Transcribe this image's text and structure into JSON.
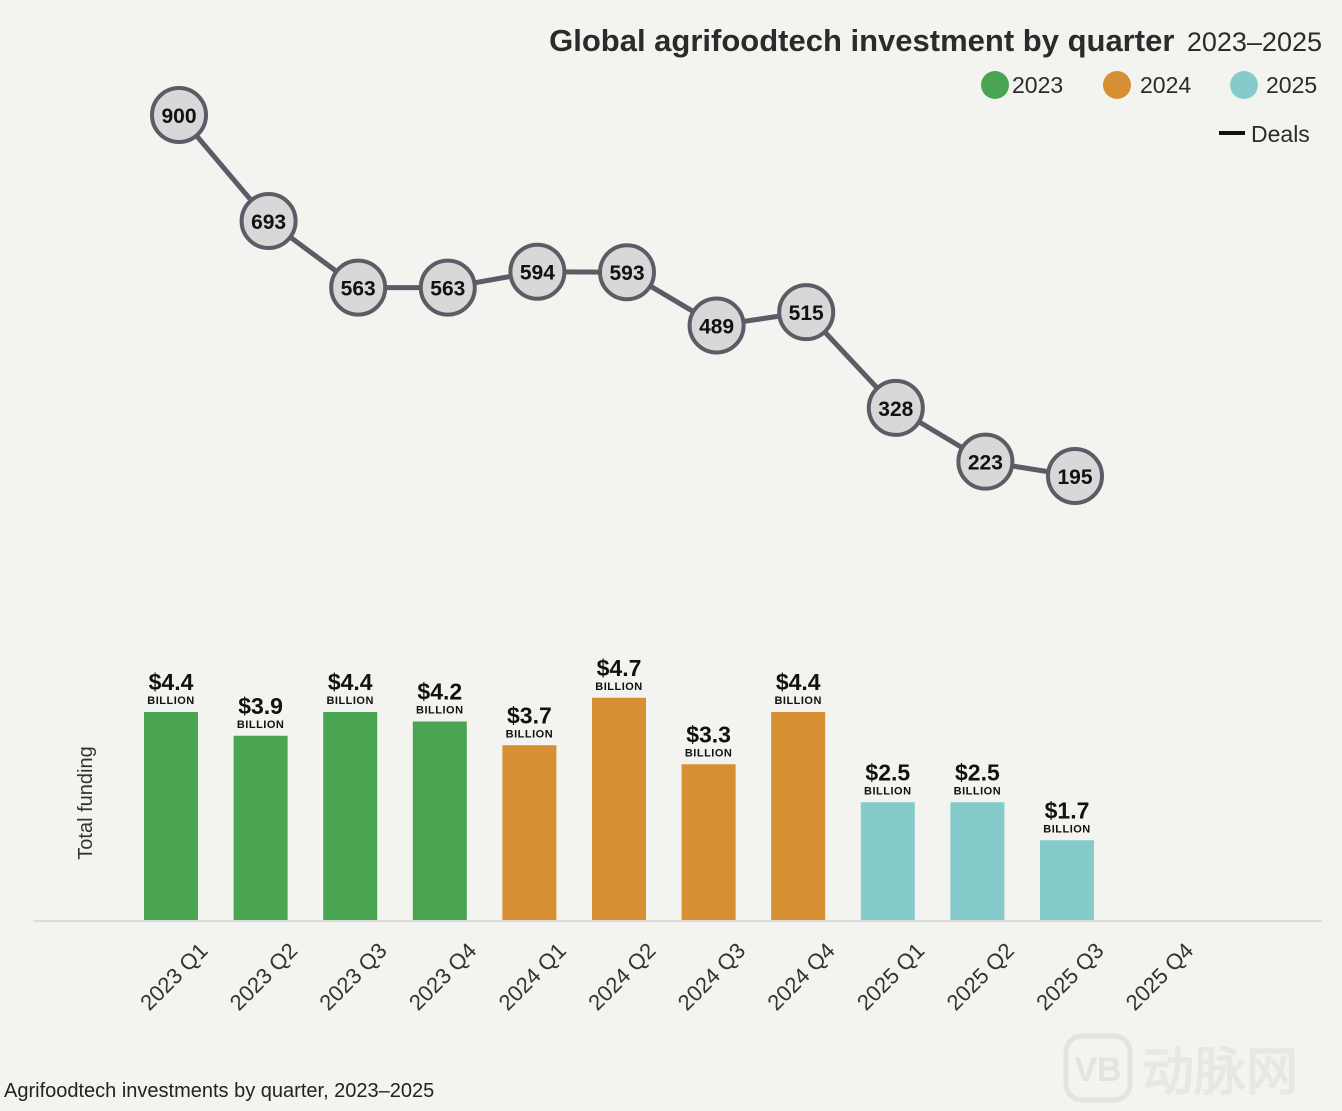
{
  "title": {
    "main": "Global agrifoodtech investment by quarter",
    "range": "2023–2025"
  },
  "legend": {
    "items": [
      {
        "label": "2023",
        "color": "#4aa552"
      },
      {
        "label": "2024",
        "color": "#d78f33"
      },
      {
        "label": "2025",
        "color": "#86cbcb"
      }
    ],
    "deals_label": "Deals"
  },
  "caption": "Agrifoodtech investments by quarter, 2023–2025",
  "watermark": {
    "text": "动脉网",
    "logo_text": "VB"
  },
  "chart_data": {
    "type": "bar",
    "title": "Global agrifoodtech investment by quarter 2023–2025",
    "xlabel": "",
    "ylabel": "Total funding",
    "categories": [
      "2023 Q1",
      "2023 Q2",
      "2023 Q3",
      "2023 Q4",
      "2024 Q1",
      "2024 Q2",
      "2024 Q3",
      "2024 Q4",
      "2025 Q1",
      "2025 Q2",
      "2025 Q3",
      "2025 Q4"
    ],
    "category_years": [
      "2023",
      "2023",
      "2023",
      "2023",
      "2024",
      "2024",
      "2024",
      "2024",
      "2025",
      "2025",
      "2025",
      "2025"
    ],
    "funding_unit": "BILLION",
    "series": [
      {
        "name": "Total funding",
        "type": "bar",
        "values": [
          4.4,
          3.9,
          4.4,
          4.2,
          3.7,
          4.7,
          3.3,
          4.4,
          2.5,
          2.5,
          1.7,
          null
        ],
        "labels": [
          "$4.4",
          "$3.9",
          "$4.4",
          "$4.2",
          "$3.7",
          "$4.7",
          "$3.3",
          "$4.4",
          "$2.5",
          "$2.5",
          "$1.7",
          null
        ]
      },
      {
        "name": "Deals",
        "type": "line",
        "values": [
          900,
          693,
          563,
          563,
          594,
          593,
          489,
          515,
          328,
          223,
          195,
          null
        ]
      }
    ],
    "ylim": [
      0,
      5
    ],
    "deals_ylim": [
      195,
      900
    ],
    "year_colors": {
      "2023": "#4aa552",
      "2024": "#d78f33",
      "2025": "#86cbcb"
    },
    "line_color": "#5b5c66",
    "marker_fill": "#d8d8d8",
    "grid": false,
    "legend_position": "top-right"
  }
}
